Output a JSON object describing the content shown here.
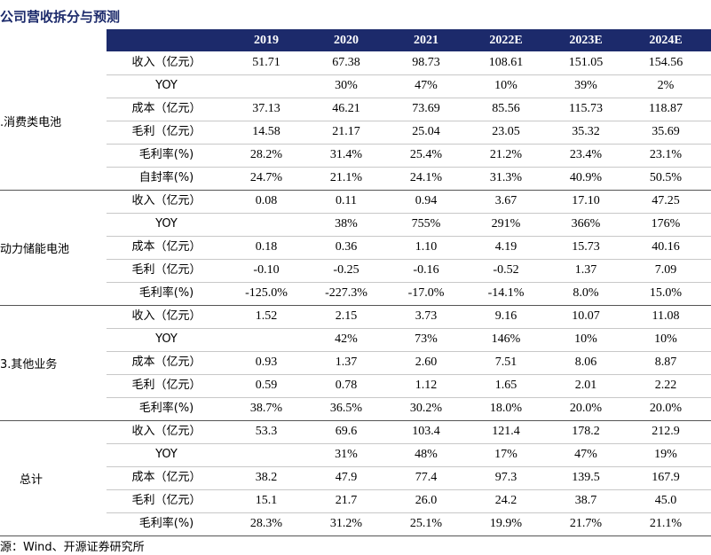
{
  "title": "公司营收拆分与预测",
  "table": {
    "header": [
      "2019",
      "2020",
      "2021",
      "2022E",
      "2023E",
      "2024E"
    ],
    "groups": [
      {
        "name": ".消费类电池",
        "rows": [
          {
            "label": "收入（亿元）",
            "values": [
              "51.71",
              "67.38",
              "98.73",
              "108.61",
              "151.05",
              "154.56"
            ]
          },
          {
            "label": "YOY",
            "values": [
              null,
              "30%",
              "47%",
              "10%",
              "39%",
              "2%"
            ]
          },
          {
            "label": "成本（亿元）",
            "values": [
              "37.13",
              "46.21",
              "73.69",
              "85.56",
              "115.73",
              "118.87"
            ]
          },
          {
            "label": "毛利（亿元）",
            "values": [
              "14.58",
              "21.17",
              "25.04",
              "23.05",
              "35.32",
              "35.69"
            ]
          },
          {
            "label": "毛利率(%)",
            "values": [
              "28.2%",
              "31.4%",
              "25.4%",
              "21.2%",
              "23.4%",
              "23.1%"
            ]
          },
          {
            "label": "自封率(%)",
            "values": [
              "24.7%",
              "21.1%",
              "24.1%",
              "31.3%",
              "40.9%",
              "50.5%"
            ]
          }
        ]
      },
      {
        "name": "动力储能电池",
        "rows": [
          {
            "label": "收入（亿元）",
            "values": [
              "0.08",
              "0.11",
              "0.94",
              "3.67",
              "17.10",
              "47.25"
            ]
          },
          {
            "label": "YOY",
            "values": [
              null,
              "38%",
              "755%",
              "291%",
              "366%",
              "176%"
            ]
          },
          {
            "label": "成本（亿元）",
            "values": [
              "0.18",
              "0.36",
              "1.10",
              "4.19",
              "15.73",
              "40.16"
            ]
          },
          {
            "label": "毛利（亿元）",
            "values": [
              "-0.10",
              "-0.25",
              "-0.16",
              "-0.52",
              "1.37",
              "7.09"
            ]
          },
          {
            "label": "毛利率(%)",
            "values": [
              "-125.0%",
              "-227.3%",
              "-17.0%",
              "-14.1%",
              "8.0%",
              "15.0%"
            ]
          }
        ]
      },
      {
        "name": "3.其他业务",
        "rows": [
          {
            "label": "收入（亿元）",
            "values": [
              "1.52",
              "2.15",
              "3.73",
              "9.16",
              "10.07",
              "11.08"
            ]
          },
          {
            "label": "YOY",
            "values": [
              null,
              "42%",
              "73%",
              "146%",
              "10%",
              "10%"
            ]
          },
          {
            "label": "成本（亿元）",
            "values": [
              "0.93",
              "1.37",
              "2.60",
              "7.51",
              "8.06",
              "8.87"
            ]
          },
          {
            "label": "毛利（亿元）",
            "values": [
              "0.59",
              "0.78",
              "1.12",
              "1.65",
              "2.01",
              "2.22"
            ]
          },
          {
            "label": "毛利率(%)",
            "values": [
              "38.7%",
              "36.5%",
              "30.2%",
              "18.0%",
              "20.0%",
              "20.0%"
            ]
          }
        ]
      },
      {
        "name": "总计",
        "rows": [
          {
            "label": "收入（亿元）",
            "values": [
              "53.3",
              "69.6",
              "103.4",
              "121.4",
              "178.2",
              "212.9"
            ]
          },
          {
            "label": "YOY",
            "values": [
              null,
              "31%",
              "48%",
              "17%",
              "47%",
              "19%"
            ]
          },
          {
            "label": "成本（亿元）",
            "values": [
              "38.2",
              "47.9",
              "77.4",
              "97.3",
              "139.5",
              "167.9"
            ]
          },
          {
            "label": "毛利（亿元）",
            "values": [
              "15.1",
              "21.7",
              "26.0",
              "24.2",
              "38.7",
              "45.0"
            ]
          },
          {
            "label": "毛利率(%)",
            "values": [
              "28.3%",
              "31.2%",
              "25.1%",
              "19.9%",
              "21.7%",
              "21.1%"
            ]
          }
        ]
      }
    ]
  },
  "source": "源：Wind、开源证券研究所"
}
